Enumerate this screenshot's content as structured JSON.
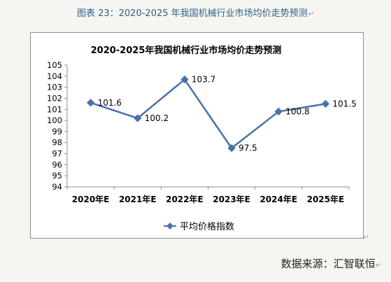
{
  "caption": "图表  23：2020-2025 年我国机械行业市场均价走势预测",
  "return_mark": "↵",
  "source": "数据来源：汇智联恒",
  "chart_data": {
    "type": "line",
    "title": "2020-2025年我国机械行业市场均价走势预测",
    "categories": [
      "2020年E",
      "2021年E",
      "2022年E",
      "2023年E",
      "2024年E",
      "2025年E"
    ],
    "series": [
      {
        "name": "平均价格指数",
        "values": [
          101.6,
          100.2,
          103.7,
          97.5,
          100.8,
          101.5
        ]
      }
    ],
    "data_labels": [
      "101.6",
      "100.2",
      "103.7",
      "97.5",
      "100.8",
      "101.5"
    ],
    "ylim": [
      94,
      105
    ],
    "yticks": [
      94,
      95,
      96,
      97,
      98,
      99,
      100,
      101,
      102,
      103,
      104,
      105
    ],
    "grid": false,
    "legend": "bottom",
    "color": "#4a72a8"
  }
}
